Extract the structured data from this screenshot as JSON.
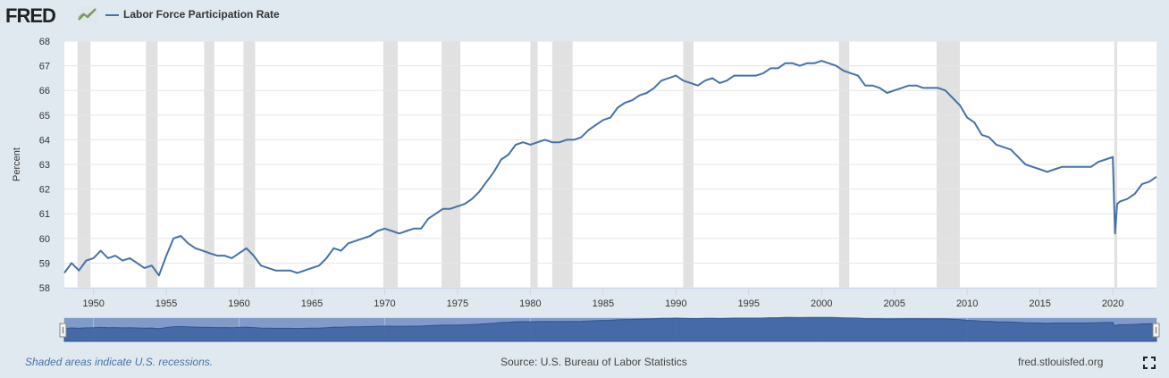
{
  "header": {
    "logo_text": "FRED",
    "legend_label": "Labor Force Participation Rate",
    "series_color": "#4572a7"
  },
  "footer": {
    "recession_note": "Shaded areas indicate U.S. recessions.",
    "source": "Source: U.S. Bureau of Labor Statistics",
    "site": "fred.stlouisfed.org"
  },
  "chart_data": {
    "type": "line",
    "ylabel": "Percent",
    "xlim": [
      1948.0,
      2023.0
    ],
    "ylim": [
      58,
      68
    ],
    "y_ticks": [
      58,
      59,
      60,
      61,
      62,
      63,
      64,
      65,
      66,
      67,
      68
    ],
    "x_ticks": [
      1950,
      1955,
      1960,
      1965,
      1970,
      1975,
      1980,
      1985,
      1990,
      1995,
      2000,
      2005,
      2010,
      2015,
      2020
    ],
    "navigator_ticks": [
      1950,
      1960,
      1970,
      1980,
      1990,
      2000,
      2010
    ],
    "grid": true,
    "recessions": [
      [
        1948.9,
        1949.8
      ],
      [
        1953.6,
        1954.4
      ],
      [
        1957.6,
        1958.3
      ],
      [
        1960.3,
        1961.1
      ],
      [
        1969.9,
        1970.9
      ],
      [
        1973.9,
        1975.2
      ],
      [
        1980.0,
        1980.5
      ],
      [
        1981.5,
        1982.9
      ],
      [
        1990.5,
        1991.2
      ],
      [
        2001.2,
        2001.9
      ],
      [
        2007.9,
        2009.5
      ],
      [
        2020.1,
        2020.3
      ]
    ],
    "series": [
      {
        "name": "Labor Force Participation Rate",
        "color": "#4572a7",
        "x": [
          1948.0,
          1948.5,
          1949.0,
          1949.5,
          1950.0,
          1950.5,
          1951.0,
          1951.5,
          1952.0,
          1952.5,
          1953.0,
          1953.5,
          1954.0,
          1954.5,
          1955.0,
          1955.5,
          1956.0,
          1956.5,
          1957.0,
          1957.5,
          1958.0,
          1958.5,
          1959.0,
          1959.5,
          1960.0,
          1960.5,
          1961.0,
          1961.5,
          1962.0,
          1962.5,
          1963.0,
          1963.5,
          1964.0,
          1964.5,
          1965.0,
          1965.5,
          1966.0,
          1966.5,
          1967.0,
          1967.5,
          1968.0,
          1968.5,
          1969.0,
          1969.5,
          1970.0,
          1970.5,
          1971.0,
          1971.5,
          1972.0,
          1972.5,
          1973.0,
          1973.5,
          1974.0,
          1974.5,
          1975.0,
          1975.5,
          1976.0,
          1976.5,
          1977.0,
          1977.5,
          1978.0,
          1978.5,
          1979.0,
          1979.5,
          1980.0,
          1980.5,
          1981.0,
          1981.5,
          1982.0,
          1982.5,
          1983.0,
          1983.5,
          1984.0,
          1984.5,
          1985.0,
          1985.5,
          1986.0,
          1986.5,
          1987.0,
          1987.5,
          1988.0,
          1988.5,
          1989.0,
          1989.5,
          1990.0,
          1990.5,
          1991.0,
          1991.5,
          1992.0,
          1992.5,
          1993.0,
          1993.5,
          1994.0,
          1994.5,
          1995.0,
          1995.5,
          1996.0,
          1996.5,
          1997.0,
          1997.5,
          1998.0,
          1998.5,
          1999.0,
          1999.5,
          2000.0,
          2000.5,
          2001.0,
          2001.5,
          2002.0,
          2002.5,
          2003.0,
          2003.5,
          2004.0,
          2004.5,
          2005.0,
          2005.5,
          2006.0,
          2006.5,
          2007.0,
          2007.5,
          2008.0,
          2008.5,
          2009.0,
          2009.5,
          2010.0,
          2010.5,
          2011.0,
          2011.5,
          2012.0,
          2012.5,
          2013.0,
          2013.5,
          2014.0,
          2014.5,
          2015.0,
          2015.5,
          2016.0,
          2016.5,
          2017.0,
          2017.5,
          2018.0,
          2018.5,
          2019.0,
          2019.5,
          2020.0,
          2020.15,
          2020.3,
          2020.5,
          2021.0,
          2021.5,
          2022.0,
          2022.5,
          2023.0
        ],
        "values": [
          58.6,
          59.0,
          58.7,
          59.1,
          59.2,
          59.5,
          59.2,
          59.3,
          59.1,
          59.2,
          59.0,
          58.8,
          58.9,
          58.5,
          59.3,
          60.0,
          60.1,
          59.8,
          59.6,
          59.5,
          59.4,
          59.3,
          59.3,
          59.2,
          59.4,
          59.6,
          59.3,
          58.9,
          58.8,
          58.7,
          58.7,
          58.7,
          58.6,
          58.7,
          58.8,
          58.9,
          59.2,
          59.6,
          59.5,
          59.8,
          59.9,
          60.0,
          60.1,
          60.3,
          60.4,
          60.3,
          60.2,
          60.3,
          60.4,
          60.4,
          60.8,
          61.0,
          61.2,
          61.2,
          61.3,
          61.4,
          61.6,
          61.9,
          62.3,
          62.7,
          63.2,
          63.4,
          63.8,
          63.9,
          63.8,
          63.9,
          64.0,
          63.9,
          63.9,
          64.0,
          64.0,
          64.1,
          64.4,
          64.6,
          64.8,
          64.9,
          65.3,
          65.5,
          65.6,
          65.8,
          65.9,
          66.1,
          66.4,
          66.5,
          66.6,
          66.4,
          66.3,
          66.2,
          66.4,
          66.5,
          66.3,
          66.4,
          66.6,
          66.6,
          66.6,
          66.6,
          66.7,
          66.9,
          66.9,
          67.1,
          67.1,
          67.0,
          67.1,
          67.1,
          67.2,
          67.1,
          67.0,
          66.8,
          66.7,
          66.6,
          66.2,
          66.2,
          66.1,
          65.9,
          66.0,
          66.1,
          66.2,
          66.2,
          66.1,
          66.1,
          66.1,
          66.0,
          65.7,
          65.4,
          64.9,
          64.7,
          64.2,
          64.1,
          63.8,
          63.7,
          63.6,
          63.3,
          63.0,
          62.9,
          62.8,
          62.7,
          62.8,
          62.9,
          62.9,
          62.9,
          62.9,
          62.9,
          63.1,
          63.2,
          63.3,
          60.2,
          61.4,
          61.5,
          61.6,
          61.8,
          62.2,
          62.3,
          62.5
        ]
      }
    ]
  }
}
